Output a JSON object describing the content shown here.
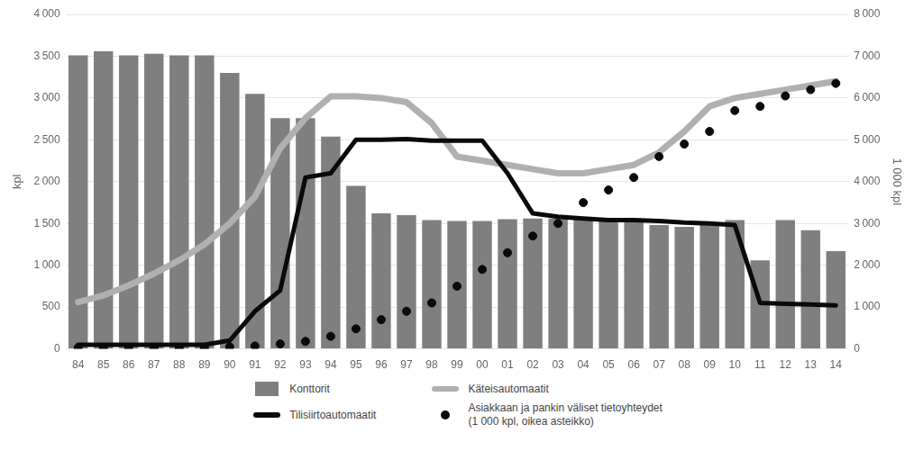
{
  "chart_data": {
    "type": "bar",
    "categories": [
      "84",
      "85",
      "86",
      "87",
      "88",
      "89",
      "90",
      "91",
      "92",
      "93",
      "94",
      "95",
      "96",
      "97",
      "98",
      "99",
      "00",
      "01",
      "02",
      "03",
      "04",
      "05",
      "06",
      "07",
      "08",
      "09",
      "10",
      "11",
      "12",
      "13",
      "14"
    ],
    "series": [
      {
        "name": "Konttorit",
        "type": "bar",
        "color": "#7f7f7f",
        "values": [
          3510,
          3560,
          3510,
          3530,
          3510,
          3510,
          3300,
          3050,
          2760,
          2760,
          2540,
          1950,
          1620,
          1600,
          1540,
          1530,
          1530,
          1550,
          1560,
          1560,
          1560,
          1540,
          1530,
          1480,
          1460,
          1500,
          1540,
          1060,
          1540,
          1420,
          1170
        ]
      },
      {
        "name": "Käteisautomaatit",
        "type": "line",
        "color": "#b0b0b0",
        "line_style": "solid",
        "values": [
          560,
          640,
          760,
          900,
          1060,
          1250,
          1500,
          1820,
          2400,
          2760,
          3020,
          3020,
          3000,
          2950,
          2700,
          2300,
          2250,
          2200,
          2150,
          2100,
          2100,
          2150,
          2200,
          2350,
          2600,
          2900,
          3000,
          3050,
          3100,
          3150,
          3200
        ]
      },
      {
        "name": "Tilisiirtoautomaatit",
        "type": "line",
        "color": "#0a0a0a",
        "line_style": "solid",
        "values": [
          50,
          50,
          50,
          50,
          50,
          50,
          100,
          450,
          700,
          2050,
          2100,
          2500,
          2500,
          2510,
          2490,
          2490,
          2490,
          2100,
          1620,
          1580,
          1560,
          1540,
          1540,
          1530,
          1510,
          1500,
          1480,
          550,
          540,
          530,
          520
        ]
      },
      {
        "name": "Asiakkaan ja pankin väliset tietoyhteydet\n(1 000 kpl, oikea asteikko)",
        "type": "scatter",
        "color": "#0a0a0a",
        "marker": "circle",
        "axis": "y2",
        "values": [
          30,
          30,
          30,
          30,
          30,
          30,
          50,
          70,
          120,
          180,
          300,
          480,
          700,
          900,
          1100,
          1500,
          1900,
          2300,
          2700,
          3000,
          3500,
          3800,
          4100,
          4600,
          4900,
          5200,
          5700,
          5800,
          6050,
          6200,
          6350
        ]
      }
    ],
    "ylabel": "kpl",
    "y2label": "1 000 kpl",
    "ylim": [
      0,
      4000
    ],
    "yticks": [
      0,
      500,
      {
        "value": 1000,
        "label": "1 000"
      },
      {
        "value": 1500,
        "label": "1 500"
      },
      {
        "value": 2000,
        "label": "2 000"
      },
      {
        "value": 2500,
        "label": "2 500"
      },
      {
        "value": 3000,
        "label": "3 000"
      },
      {
        "value": 3500,
        "label": "3 500"
      },
      {
        "value": 4000,
        "label": "4 000"
      }
    ],
    "y2lim": [
      0,
      8000
    ],
    "y2ticks": [
      0,
      {
        "value": 1000,
        "label": "1 000"
      },
      {
        "value": 2000,
        "label": "2 000"
      },
      {
        "value": 3000,
        "label": "3 000"
      },
      {
        "value": 4000,
        "label": "4 000"
      },
      {
        "value": 5000,
        "label": "5 000"
      },
      {
        "value": 6000,
        "label": "6 000"
      },
      {
        "value": 7000,
        "label": "7 000"
      },
      {
        "value": 8000,
        "label": "8 000"
      }
    ],
    "grid": true,
    "legend": "bottom"
  }
}
